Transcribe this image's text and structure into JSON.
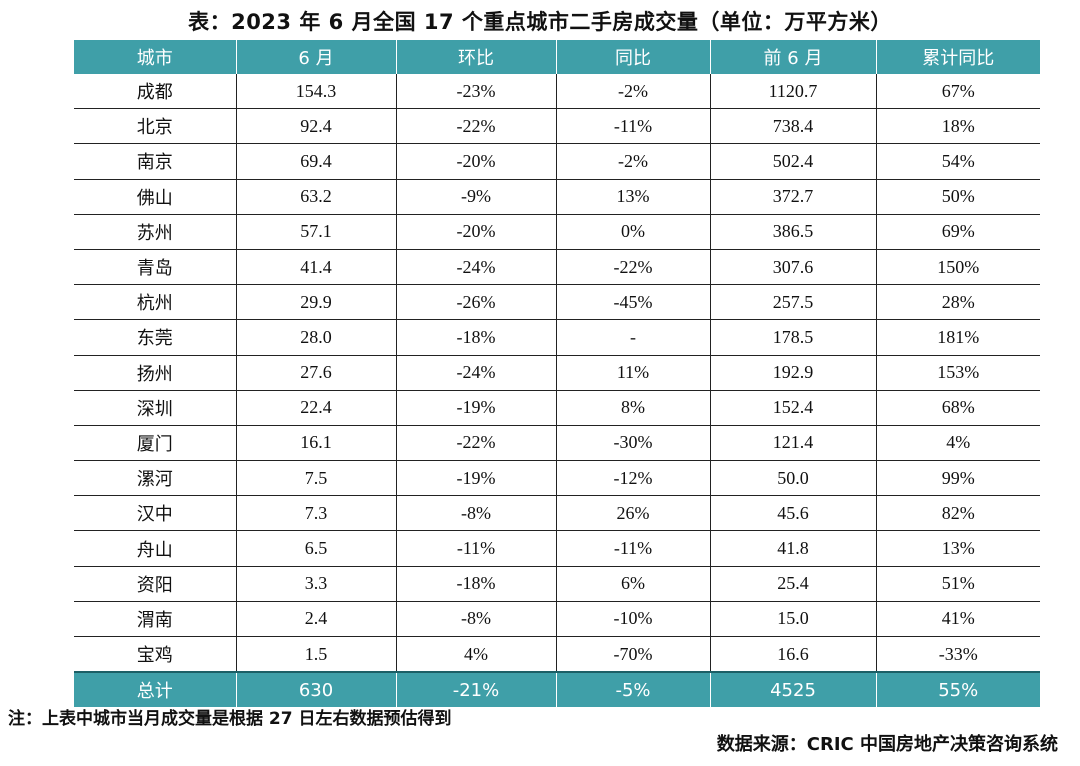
{
  "title": "表：2023 年 6 月全国 17 个重点城市二手房成交量（单位：万平方米）",
  "table": {
    "headers": [
      "城市",
      "6 月",
      "环比",
      "同比",
      "前 6 月",
      "累计同比"
    ],
    "rows": [
      [
        "成都",
        "154.3",
        "-23%",
        "-2%",
        "1120.7",
        "67%"
      ],
      [
        "北京",
        "92.4",
        "-22%",
        "-11%",
        "738.4",
        "18%"
      ],
      [
        "南京",
        "69.4",
        "-20%",
        "-2%",
        "502.4",
        "54%"
      ],
      [
        "佛山",
        "63.2",
        "-9%",
        "13%",
        "372.7",
        "50%"
      ],
      [
        "苏州",
        "57.1",
        "-20%",
        "0%",
        "386.5",
        "69%"
      ],
      [
        "青岛",
        "41.4",
        "-24%",
        "-22%",
        "307.6",
        "150%"
      ],
      [
        "杭州",
        "29.9",
        "-26%",
        "-45%",
        "257.5",
        "28%"
      ],
      [
        "东莞",
        "28.0",
        "-18%",
        "-",
        "178.5",
        "181%"
      ],
      [
        "扬州",
        "27.6",
        "-24%",
        "11%",
        "192.9",
        "153%"
      ],
      [
        "深圳",
        "22.4",
        "-19%",
        "8%",
        "152.4",
        "68%"
      ],
      [
        "厦门",
        "16.1",
        "-22%",
        "-30%",
        "121.4",
        "4%"
      ],
      [
        "漯河",
        "7.5",
        "-19%",
        "-12%",
        "50.0",
        "99%"
      ],
      [
        "汉中",
        "7.3",
        "-8%",
        "26%",
        "45.6",
        "82%"
      ],
      [
        "舟山",
        "6.5",
        "-11%",
        "-11%",
        "41.8",
        "13%"
      ],
      [
        "资阳",
        "3.3",
        "-18%",
        "6%",
        "25.4",
        "51%"
      ],
      [
        "渭南",
        "2.4",
        "-8%",
        "-10%",
        "15.0",
        "41%"
      ],
      [
        "宝鸡",
        "1.5",
        "4%",
        "-70%",
        "16.6",
        "-33%"
      ]
    ],
    "total": [
      "总计",
      "630",
      "-21%",
      "-5%",
      "4525",
      "55%"
    ]
  },
  "note": "注：上表中城市当月成交量是根据 27 日左右数据预估得到",
  "source": "数据来源：CRIC 中国房地产决策咨询系统",
  "colors": {
    "header_bg": "#3f9fa8",
    "header_text": "#ffffff"
  }
}
